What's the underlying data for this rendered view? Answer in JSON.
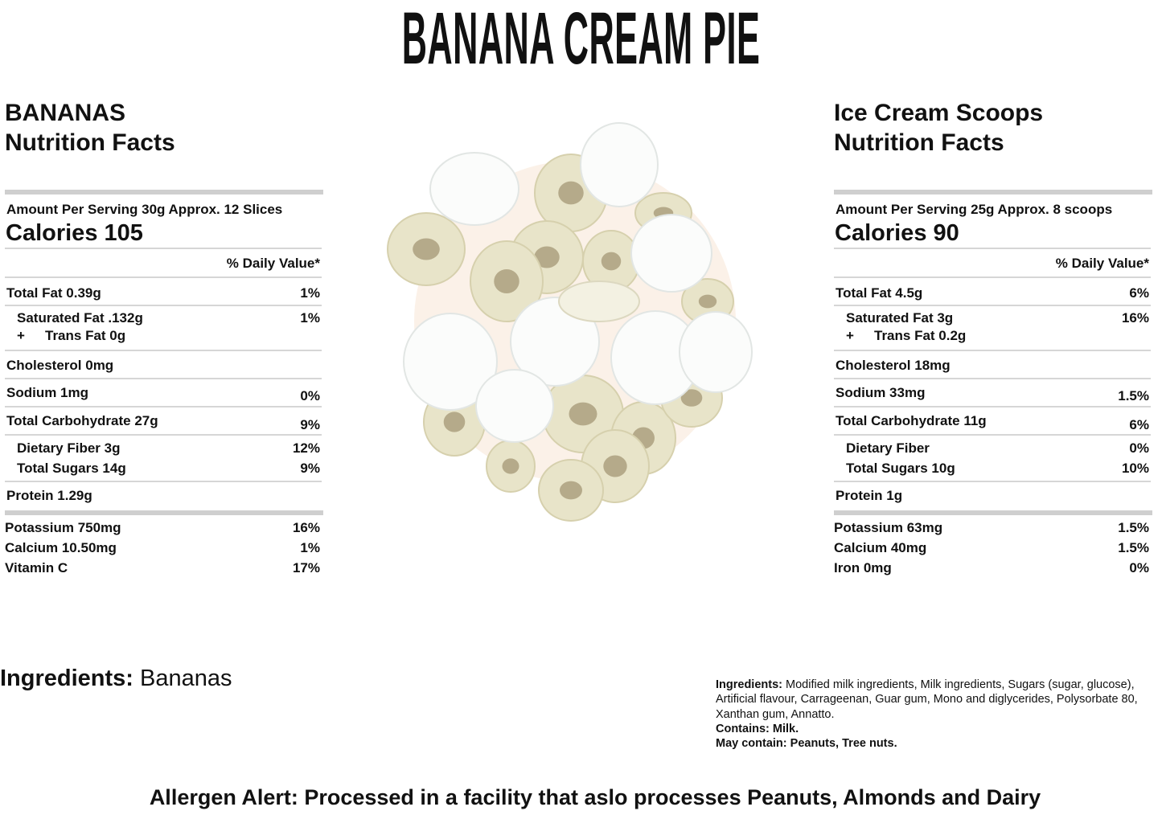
{
  "title": "BANANA CREAM PIE",
  "left": {
    "heading1": "BANANAS",
    "heading2": "Nutrition Facts",
    "serving": "Amount Per Serving 30g Approx. 12 Slices",
    "calories": "Calories 105",
    "dv_header": "% Daily Value*",
    "rows": [
      {
        "label": "Total Fat 0.39g",
        "value": "1%"
      },
      {
        "label": "Saturated Fat .132g",
        "value": "1%",
        "indent": true
      },
      {
        "label": "Trans Fat 0g",
        "value": "",
        "prefix": "+",
        "indent": true
      },
      {
        "label": "Cholesterol 0mg",
        "value": ""
      },
      {
        "label": "Sodium 1mg",
        "value": "0%"
      },
      {
        "label": "Total Carbohydrate 27g",
        "value": "9%"
      },
      {
        "label": "Dietary Fiber 3g",
        "value": "12%",
        "indent": true
      },
      {
        "label": "Total Sugars 14g",
        "value": "9%",
        "indent": true
      },
      {
        "label": "Protein 1.29g",
        "value": ""
      },
      {
        "label": "Potassium 750mg",
        "value": "16%"
      },
      {
        "label": "Calcium 10.50mg",
        "value": "1%"
      },
      {
        "label": "Vitamin C",
        "value": "17%"
      }
    ]
  },
  "right": {
    "heading1": "Ice Cream Scoops",
    "heading2": "Nutrition Facts",
    "serving": "Amount Per Serving 25g Approx. 8 scoops",
    "calories": "Calories 90",
    "dv_header": "% Daily Value*",
    "rows": [
      {
        "label": "Total Fat 4.5g",
        "value": "6%"
      },
      {
        "label": "Saturated Fat 3g",
        "value": "16%",
        "indent": true
      },
      {
        "label": "Trans Fat 0.2g",
        "value": "",
        "prefix": "+",
        "indent": true
      },
      {
        "label": "Cholesterol 18mg",
        "value": ""
      },
      {
        "label": "Sodium 33mg",
        "value": "1.5%"
      },
      {
        "label": "Total Carbohydrate 11g",
        "value": "6%"
      },
      {
        "label": "Dietary Fiber",
        "value": "0%",
        "indent": true
      },
      {
        "label": "Total Sugars 10g",
        "value": "10%",
        "indent": true
      },
      {
        "label": "Protein 1g",
        "value": ""
      },
      {
        "label": "Potassium 63mg",
        "value": "1.5%"
      },
      {
        "label": "Calcium 40mg",
        "value": "1.5%"
      },
      {
        "label": "Iron 0mg",
        "value": "0%"
      }
    ]
  },
  "ingredients_left": {
    "label": "Ingredients:",
    "text": " Bananas"
  },
  "ingredients_right": {
    "label": "Ingredients:",
    "text": " Modified milk ingredients, Milk ingredients,  Sugars (sugar, glucose), Artificial flavour, Carrageenan, Guar gum, Mono and diglycerides, Polysorbate 80, Xanthan gum, Annatto.",
    "contains": "Contains: Milk.",
    "may_contain": "May contain: Peanuts, Tree nuts."
  },
  "allergen": "Allergen Alert: Processed in a facility that aslo processes Peanuts, Almonds and Dairy"
}
